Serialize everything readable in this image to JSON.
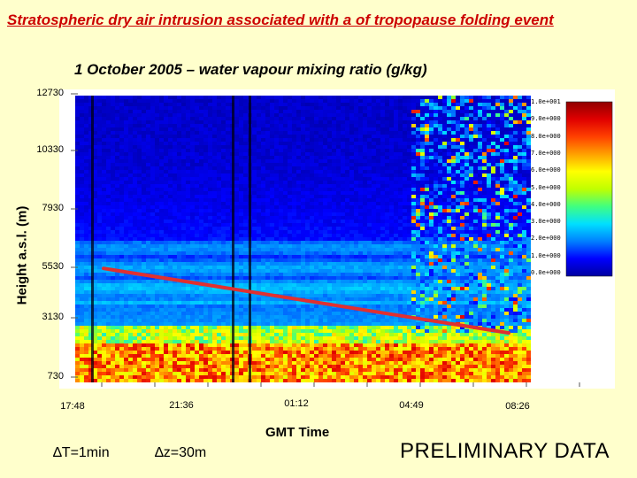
{
  "slide": {
    "title": "Stratospheric dry air intrusion associated with a of tropopause folding event",
    "notes": {
      "dt": "∆T=1min",
      "dz": "∆z=30m"
    },
    "preliminary": "PRELIMINARY DATA"
  },
  "chart_data": {
    "type": "heatmap",
    "title": "1 October 2005 – water vapour mixing ratio (g/kg)",
    "xlabel": "GMT Time",
    "ylabel": "Height a.s.l. (m)",
    "x_ticks": [
      "17:48",
      "21:36",
      "01:12",
      "04:49",
      "08:26"
    ],
    "y_ticks": [
      "12730",
      "10330",
      "7930",
      "5530",
      "3130",
      "730"
    ],
    "ylim": [
      730,
      12730
    ],
    "colorbar": {
      "ticks": [
        "1.0e+001",
        "9.0e+000",
        "8.0e+000",
        "7.0e+000",
        "6.0e+000",
        "5.0e+000",
        "4.0e+000",
        "3.0e+000",
        "2.0e+000",
        "1.0e+000",
        "0.0e+000"
      ],
      "range": [
        0,
        10
      ],
      "colors": [
        "#0000a0",
        "#0000ff",
        "#0080ff",
        "#00e0ff",
        "#40ff80",
        "#c0ff00",
        "#ffff00",
        "#ffa000",
        "#ff4000",
        "#e00000",
        "#900000"
      ]
    },
    "annotation_line": {
      "color": "#e03030",
      "start": {
        "time": "~18:40",
        "height_m": 5500
      },
      "end": {
        "time": "~08:26",
        "height_m": 2800
      }
    }
  },
  "colors": {
    "background": "#ffffcc",
    "title": "#cc0000",
    "line": "#e03030"
  }
}
